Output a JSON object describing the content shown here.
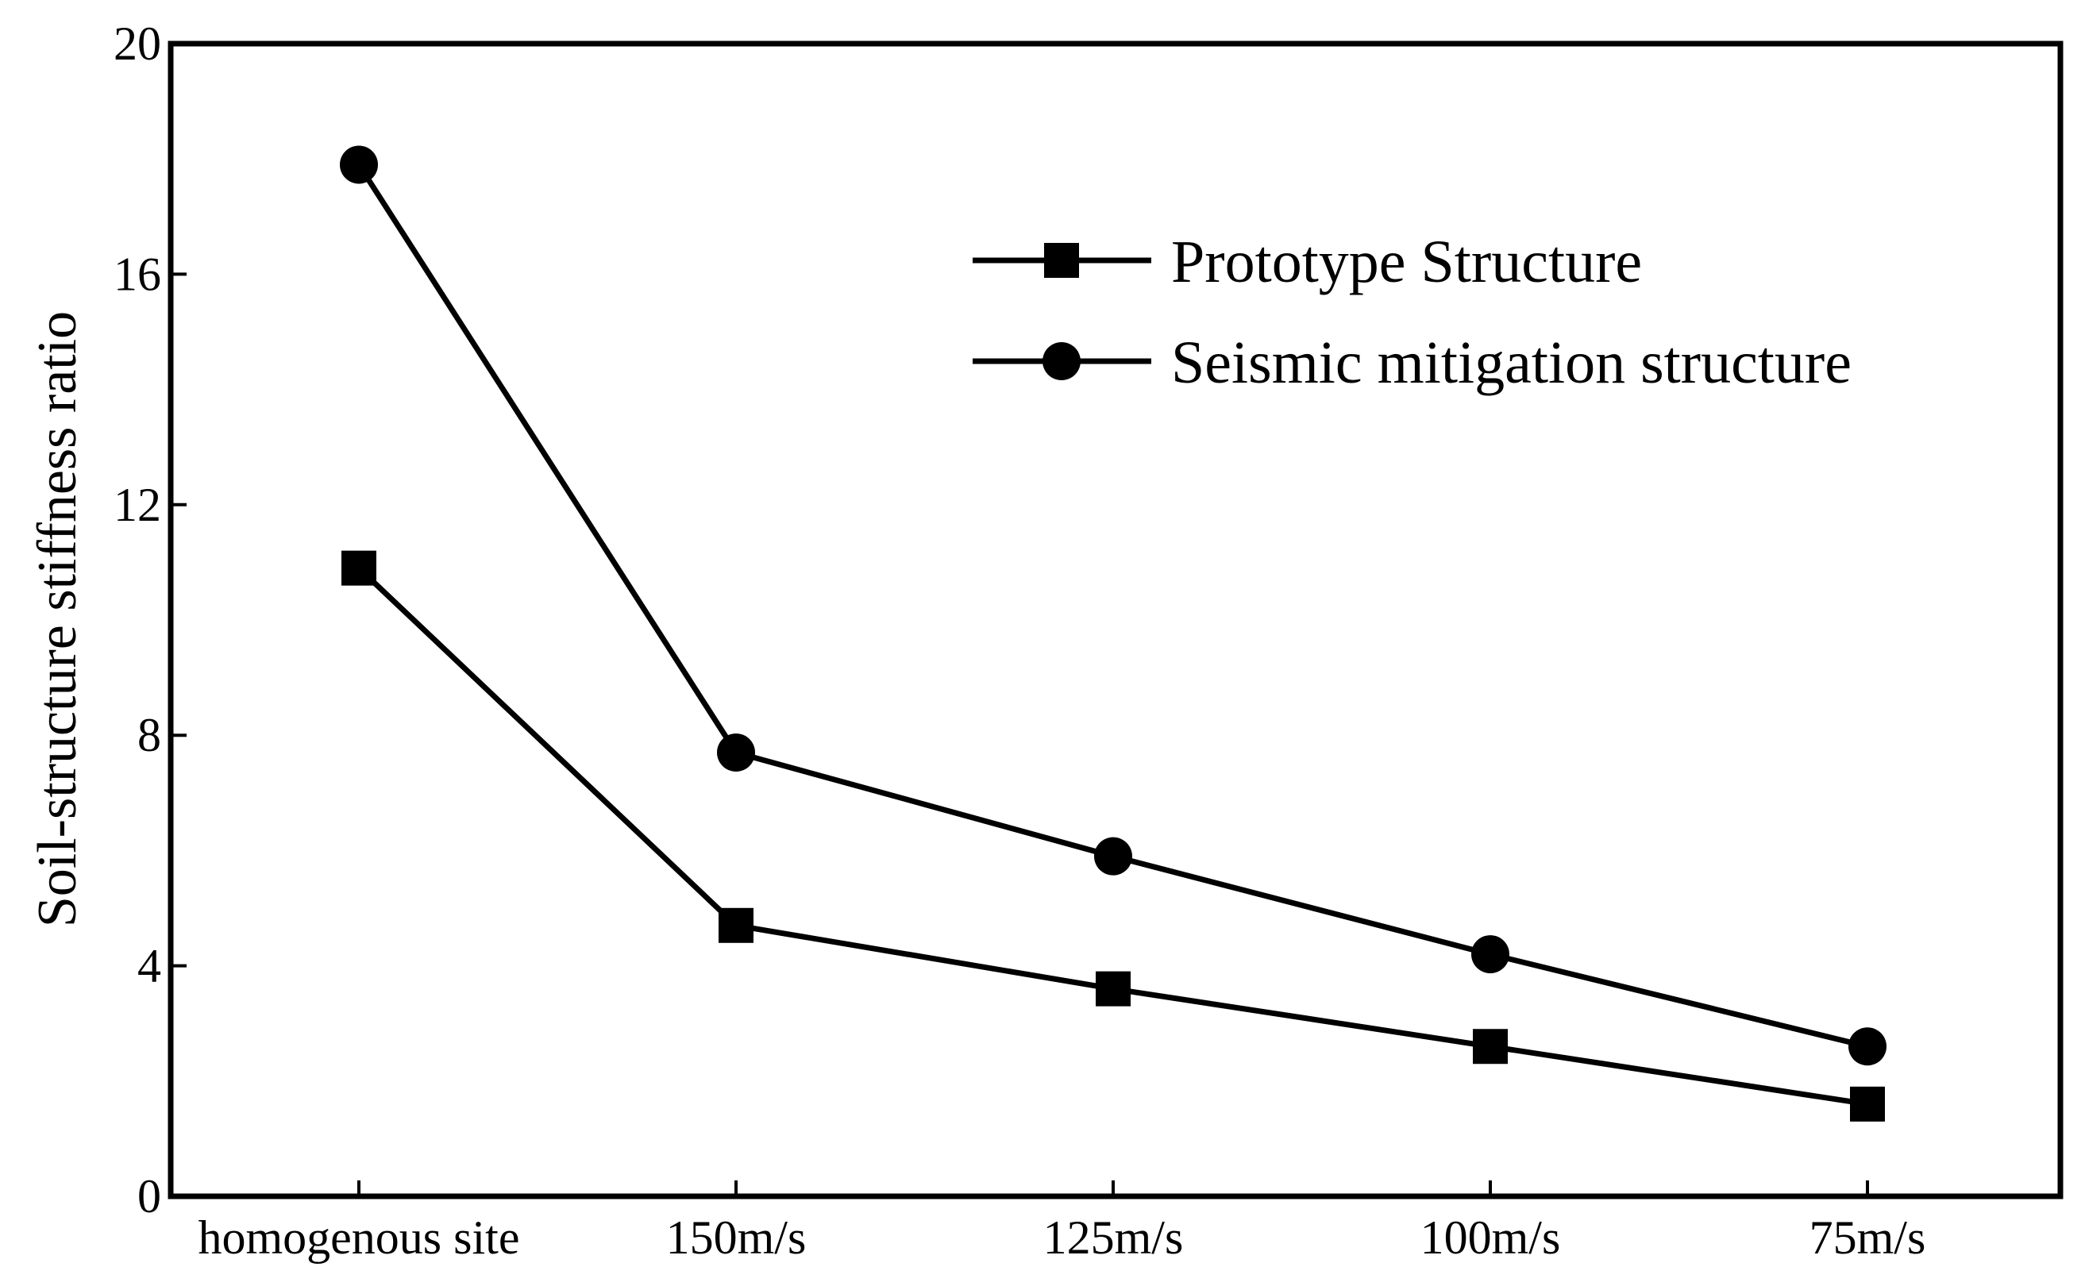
{
  "chart_data": {
    "type": "line",
    "ylabel": "Soil-structure stiffness ratio",
    "xlabel": "",
    "categories": [
      "homogenous site",
      "150m/s",
      "125m/s",
      "100m/s",
      "75m/s"
    ],
    "ylim": [
      0,
      20
    ],
    "yticks": [
      0,
      4,
      8,
      12,
      16,
      20
    ],
    "legend_position": "top-right",
    "grid": false,
    "series": [
      {
        "name": "Prototype Structure",
        "marker": "square",
        "values": [
          10.9,
          4.7,
          3.6,
          2.6,
          1.6
        ]
      },
      {
        "name": "Seismic mitigation structure",
        "marker": "circle",
        "values": [
          17.9,
          7.7,
          5.9,
          4.2,
          2.6
        ]
      }
    ]
  }
}
